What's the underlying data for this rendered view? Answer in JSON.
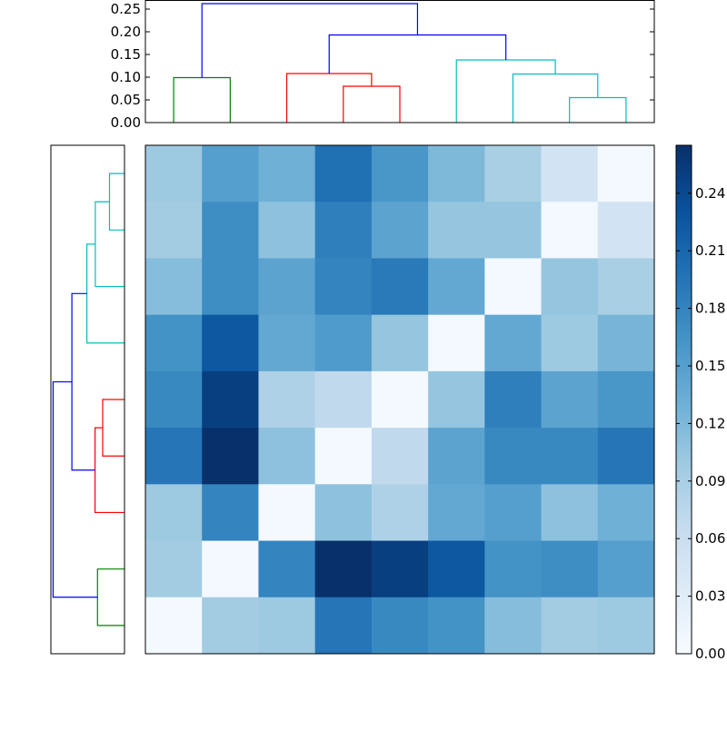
{
  "chart_data": [
    {
      "type": "dendrogram",
      "orientation": "top",
      "ylim": [
        0,
        0.27
      ],
      "y_ticks": [
        "0.00",
        "0.05",
        "0.10",
        "0.15",
        "0.20",
        "0.25"
      ],
      "leaf_order": [
        0,
        1,
        2,
        3,
        4,
        5,
        6,
        7,
        8
      ],
      "links": [
        {
          "left": 7.0,
          "right": 8.0,
          "height": 0.055,
          "color": "#00bfbf"
        },
        {
          "left": 6.0,
          "right": 7.5,
          "height": 0.107,
          "color": "#00bfbf"
        },
        {
          "left": 5.0,
          "right": 6.75,
          "height": 0.138,
          "color": "#00bfbf"
        },
        {
          "left": 3.0,
          "right": 4.0,
          "height": 0.08,
          "color": "#ff0000"
        },
        {
          "left": 2.0,
          "right": 3.5,
          "height": 0.108,
          "color": "#ff0000"
        },
        {
          "left": 0.0,
          "right": 1.0,
          "height": 0.099,
          "color": "#008000"
        },
        {
          "left": 2.75,
          "right": 5.875,
          "height": 0.193,
          "color": "#0000ff"
        },
        {
          "left": 0.5,
          "right": 4.3125,
          "height": 0.262,
          "color": "#0000ff"
        }
      ]
    },
    {
      "type": "dendrogram",
      "orientation": "left",
      "xlim": [
        0,
        0.27
      ],
      "leaf_order_top_to_bottom": [
        8,
        7,
        6,
        5,
        4,
        3,
        2,
        1,
        0
      ],
      "links": [
        {
          "a": 8.0,
          "b": 7.0,
          "height": 0.055,
          "color": "#00bfbf"
        },
        {
          "a": 7.5,
          "b": 6.0,
          "height": 0.107,
          "color": "#00bfbf"
        },
        {
          "a": 6.75,
          "b": 5.0,
          "height": 0.138,
          "color": "#00bfbf"
        },
        {
          "a": 4.0,
          "b": 3.0,
          "height": 0.08,
          "color": "#ff0000"
        },
        {
          "a": 3.5,
          "b": 2.0,
          "height": 0.108,
          "color": "#ff0000"
        },
        {
          "a": 1.0,
          "b": 0.0,
          "height": 0.099,
          "color": "#008000"
        },
        {
          "a": 5.875,
          "b": 2.75,
          "height": 0.193,
          "color": "#0000ff"
        },
        {
          "a": 4.3125,
          "b": 0.5,
          "height": 0.262,
          "color": "#0000ff"
        }
      ]
    },
    {
      "type": "heatmap",
      "colormap": "Blues",
      "vmin": 0.0,
      "vmax": 0.265,
      "rows_top_to_bottom": [
        [
          0.1,
          0.15,
          0.13,
          0.2,
          0.16,
          0.12,
          0.09,
          0.05,
          0.005
        ],
        [
          0.095,
          0.17,
          0.11,
          0.185,
          0.145,
          0.105,
          0.105,
          0.005,
          0.05
        ],
        [
          0.115,
          0.17,
          0.145,
          0.18,
          0.19,
          0.14,
          0.005,
          0.105,
          0.09
        ],
        [
          0.165,
          0.225,
          0.14,
          0.155,
          0.105,
          0.005,
          0.14,
          0.1,
          0.125
        ],
        [
          0.175,
          0.25,
          0.085,
          0.07,
          0.005,
          0.105,
          0.185,
          0.145,
          0.16
        ],
        [
          0.195,
          0.265,
          0.11,
          0.005,
          0.07,
          0.145,
          0.175,
          0.175,
          0.195
        ],
        [
          0.1,
          0.18,
          0.005,
          0.11,
          0.085,
          0.14,
          0.15,
          0.11,
          0.13
        ],
        [
          0.095,
          0.005,
          0.18,
          0.265,
          0.25,
          0.225,
          0.165,
          0.17,
          0.15
        ],
        [
          0.005,
          0.095,
          0.1,
          0.195,
          0.175,
          0.165,
          0.115,
          0.095,
          0.1
        ]
      ]
    },
    {
      "type": "colorbar",
      "vmin": 0.0,
      "vmax": 0.265,
      "ticks": [
        "0.00",
        "0.03",
        "0.06",
        "0.09",
        "0.12",
        "0.15",
        "0.18",
        "0.21",
        "0.24"
      ]
    }
  ]
}
